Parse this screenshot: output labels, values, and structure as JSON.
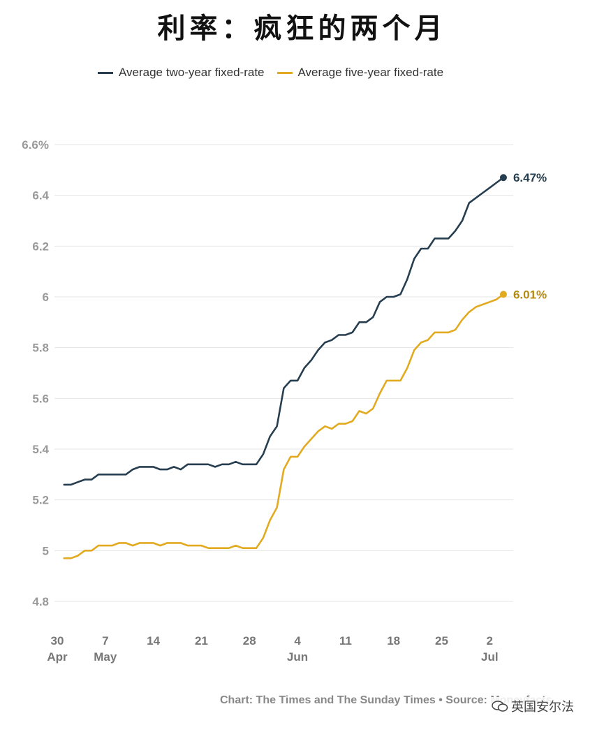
{
  "title": "利率：疯狂的两个月",
  "legend": [
    {
      "label": "Average two-year fixed-rate",
      "color": "#263e4f"
    },
    {
      "label": "Average five-year fixed-rate",
      "color": "#e2aa20"
    }
  ],
  "source": "Chart: The Times and The Sunday Times • Source: Moneyfacts",
  "watermark": "英国安尔法",
  "chart_data": {
    "type": "line",
    "ylim": [
      4.7,
      6.6
    ],
    "y_ticks": [
      {
        "value": 6.6,
        "label": "6.6%"
      },
      {
        "value": 6.4,
        "label": "6.4"
      },
      {
        "value": 6.2,
        "label": "6.2"
      },
      {
        "value": 6.0,
        "label": "6"
      },
      {
        "value": 5.8,
        "label": "5.8"
      },
      {
        "value": 5.6,
        "label": "5.6"
      },
      {
        "value": 5.4,
        "label": "5.4"
      },
      {
        "value": 5.2,
        "label": "5.2"
      },
      {
        "value": 5.0,
        "label": "5"
      },
      {
        "value": 4.8,
        "label": "4.8"
      }
    ],
    "x_ticks": [
      {
        "day": 0,
        "label": "30",
        "sub": "Apr"
      },
      {
        "day": 7,
        "label": "7",
        "sub": "May"
      },
      {
        "day": 14,
        "label": "14",
        "sub": ""
      },
      {
        "day": 21,
        "label": "21",
        "sub": ""
      },
      {
        "day": 28,
        "label": "28",
        "sub": ""
      },
      {
        "day": 35,
        "label": "4",
        "sub": "Jun"
      },
      {
        "day": 42,
        "label": "11",
        "sub": ""
      },
      {
        "day": 49,
        "label": "18",
        "sub": ""
      },
      {
        "day": 56,
        "label": "25",
        "sub": ""
      },
      {
        "day": 63,
        "label": "2",
        "sub": "Jul"
      }
    ],
    "series": [
      {
        "name": "Average two-year fixed-rate",
        "color": "#263e4f",
        "end_label": "6.47%",
        "x": [
          1,
          2,
          3,
          4,
          5,
          6,
          7,
          8,
          9,
          10,
          11,
          12,
          13,
          14,
          15,
          16,
          17,
          18,
          19,
          20,
          21,
          22,
          23,
          24,
          25,
          26,
          27,
          28,
          29,
          30,
          31,
          32,
          33,
          34,
          35,
          36,
          37,
          38,
          39,
          40,
          41,
          42,
          43,
          44,
          45,
          46,
          47,
          48,
          49,
          50,
          51,
          52,
          53,
          54,
          55,
          56,
          57,
          58,
          59,
          60,
          61,
          62,
          63,
          64,
          65
        ],
        "y": [
          5.26,
          5.26,
          5.27,
          5.28,
          5.28,
          5.3,
          5.3,
          5.3,
          5.3,
          5.3,
          5.32,
          5.33,
          5.33,
          5.33,
          5.32,
          5.32,
          5.33,
          5.32,
          5.34,
          5.34,
          5.34,
          5.34,
          5.33,
          5.34,
          5.34,
          5.35,
          5.34,
          5.34,
          5.34,
          5.38,
          5.45,
          5.49,
          5.64,
          5.67,
          5.67,
          5.72,
          5.75,
          5.79,
          5.82,
          5.83,
          5.85,
          5.85,
          5.86,
          5.9,
          5.9,
          5.92,
          5.98,
          6.0,
          6.0,
          6.01,
          6.07,
          6.15,
          6.19,
          6.19,
          6.23,
          6.23,
          6.23,
          6.26,
          6.3,
          6.37,
          6.39,
          6.41,
          6.43,
          6.45,
          6.47
        ]
      },
      {
        "name": "Average five-year fixed-rate",
        "color": "#e2aa20",
        "end_label": "6.01%",
        "x": [
          1,
          2,
          3,
          4,
          5,
          6,
          7,
          8,
          9,
          10,
          11,
          12,
          13,
          14,
          15,
          16,
          17,
          18,
          19,
          20,
          21,
          22,
          23,
          24,
          25,
          26,
          27,
          28,
          29,
          30,
          31,
          32,
          33,
          34,
          35,
          36,
          37,
          38,
          39,
          40,
          41,
          42,
          43,
          44,
          45,
          46,
          47,
          48,
          49,
          50,
          51,
          52,
          53,
          54,
          55,
          56,
          57,
          58,
          59,
          60,
          61,
          62,
          63,
          64,
          65
        ],
        "y": [
          4.97,
          4.97,
          4.98,
          5.0,
          5.0,
          5.02,
          5.02,
          5.02,
          5.03,
          5.03,
          5.02,
          5.03,
          5.03,
          5.03,
          5.02,
          5.03,
          5.03,
          5.03,
          5.02,
          5.02,
          5.02,
          5.01,
          5.01,
          5.01,
          5.01,
          5.02,
          5.01,
          5.01,
          5.01,
          5.05,
          5.12,
          5.17,
          5.32,
          5.37,
          5.37,
          5.41,
          5.44,
          5.47,
          5.49,
          5.48,
          5.5,
          5.5,
          5.51,
          5.55,
          5.54,
          5.56,
          5.62,
          5.67,
          5.67,
          5.67,
          5.72,
          5.79,
          5.82,
          5.83,
          5.86,
          5.86,
          5.86,
          5.87,
          5.91,
          5.94,
          5.96,
          5.97,
          5.98,
          5.99,
          6.01
        ]
      }
    ]
  }
}
